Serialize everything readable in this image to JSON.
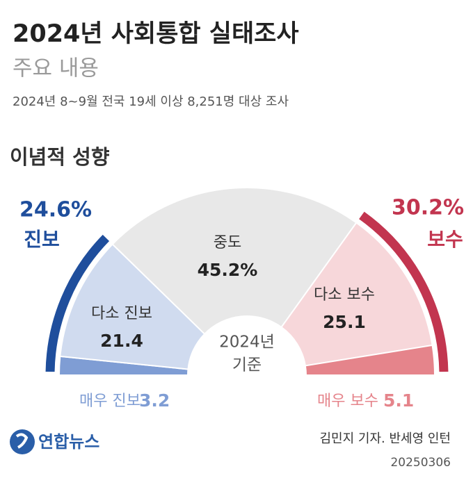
{
  "chart_data": {
    "type": "pie",
    "half": true,
    "title": "2024년 사회통합 실태조사",
    "subtitle": "주요 내용",
    "note": "2024년 8~9월 전국 19세 이상 8,251명 대상 조사",
    "section_title": "이념적 성향",
    "center_label": [
      "2024년",
      "기준"
    ],
    "categories": [
      "매우 진보",
      "다소 진보",
      "중도",
      "다소 보수",
      "매우 보수"
    ],
    "values": [
      3.2,
      21.4,
      45.2,
      25.1,
      5.1
    ],
    "value_labels": [
      "3.2",
      "21.4",
      "45.2%",
      "25.1",
      "5.1"
    ],
    "colors": [
      "#7f9dd4",
      "#d0dbef",
      "#e8e8e8",
      "#f7d7da",
      "#e5848b"
    ],
    "groups": [
      {
        "name": "진보",
        "value": 24.6,
        "value_label": "24.6%",
        "color": "#1f4e9c"
      },
      {
        "name": "보수",
        "value": 30.2,
        "value_label": "30.2%",
        "color": "#c2354f"
      }
    ],
    "source": "연합뉴스",
    "credit": "김민지 기자. 반세영 인턴",
    "date": "20250306"
  }
}
